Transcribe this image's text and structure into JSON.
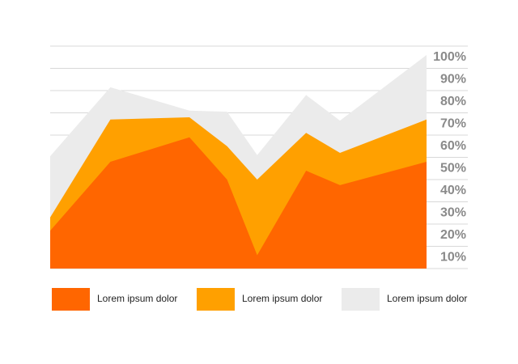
{
  "chart_data": {
    "type": "area",
    "x": [
      0,
      16,
      37,
      47,
      55,
      68,
      77,
      100
    ],
    "xlim": [
      0,
      100
    ],
    "series": [
      {
        "name": "Lorem ipsum dolor",
        "color": "#ff6600",
        "values": [
          17,
          48,
          59,
          40,
          6,
          44,
          37.5,
          48
        ]
      },
      {
        "name": "Lorem ipsum dolor",
        "color": "#ffa000",
        "values": [
          23,
          67,
          68,
          55,
          40,
          61,
          52,
          67
        ]
      },
      {
        "name": "Lorem ipsum dolor",
        "color": "#ebebeb",
        "values": [
          50.5,
          81.5,
          71,
          70.5,
          51,
          78,
          66.5,
          96
        ]
      }
    ],
    "ylim": [
      0,
      100
    ],
    "yticks": [
      {
        "value": 10,
        "label": "10%"
      },
      {
        "value": 20,
        "label": "20%"
      },
      {
        "value": 30,
        "label": "30%"
      },
      {
        "value": 40,
        "label": "40%"
      },
      {
        "value": 50,
        "label": "50%"
      },
      {
        "value": 60,
        "label": "60%"
      },
      {
        "value": 70,
        "label": "70%"
      },
      {
        "value": 80,
        "label": "80%"
      },
      {
        "value": 90,
        "label": "90%"
      },
      {
        "value": 100,
        "label": "100%"
      }
    ],
    "grid": true
  }
}
